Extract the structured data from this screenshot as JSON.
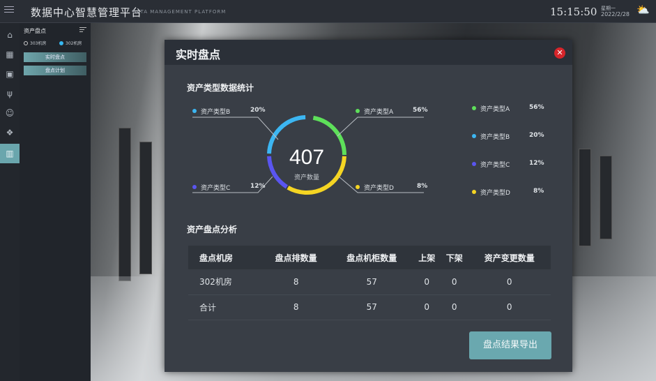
{
  "header": {
    "title": "数据中心智慧管理平台",
    "subtitle": "DATA MANAGEMENT PLATFORM",
    "time": "15:15:50",
    "weekday": "星期一",
    "date": "2022/2/28",
    "weather_icon": "cloudy-sun-icon"
  },
  "sidebar": {
    "icons": [
      "home-icon",
      "grid-icon",
      "monitor-icon",
      "plug-icon",
      "face-icon",
      "boxes-icon",
      "asset-icon"
    ],
    "active_index": 6
  },
  "subpanel": {
    "title": "资产盘点",
    "rooms": [
      {
        "label": "303机房",
        "selected": false
      },
      {
        "label": "302机房",
        "selected": true
      }
    ],
    "buttons": [
      "实时盘点",
      "盘点计划"
    ]
  },
  "modal": {
    "title": "实时盘点",
    "section1": "资产类型数据统计",
    "total": "407",
    "total_label": "资产数量",
    "types": [
      {
        "name": "资产类型A",
        "percent": "56%",
        "color": "#5ee05a"
      },
      {
        "name": "资产类型B",
        "percent": "20%",
        "color": "#3cb6f2"
      },
      {
        "name": "资产类型C",
        "percent": "12%",
        "color": "#5a55f0"
      },
      {
        "name": "资产类型D",
        "percent": "8%",
        "color": "#f5d523"
      }
    ],
    "section2": "资产盘点分析",
    "table": {
      "headers": [
        "盘点机房",
        "盘点排数量",
        "盘点机柜数量",
        "上架",
        "下架",
        "资产变更数量"
      ],
      "rows": [
        [
          "302机房",
          "8",
          "57",
          "0",
          "0",
          "0"
        ],
        [
          "合计",
          "8",
          "57",
          "0",
          "0",
          "0"
        ]
      ]
    },
    "export_label": "盘点结果导出"
  }
}
